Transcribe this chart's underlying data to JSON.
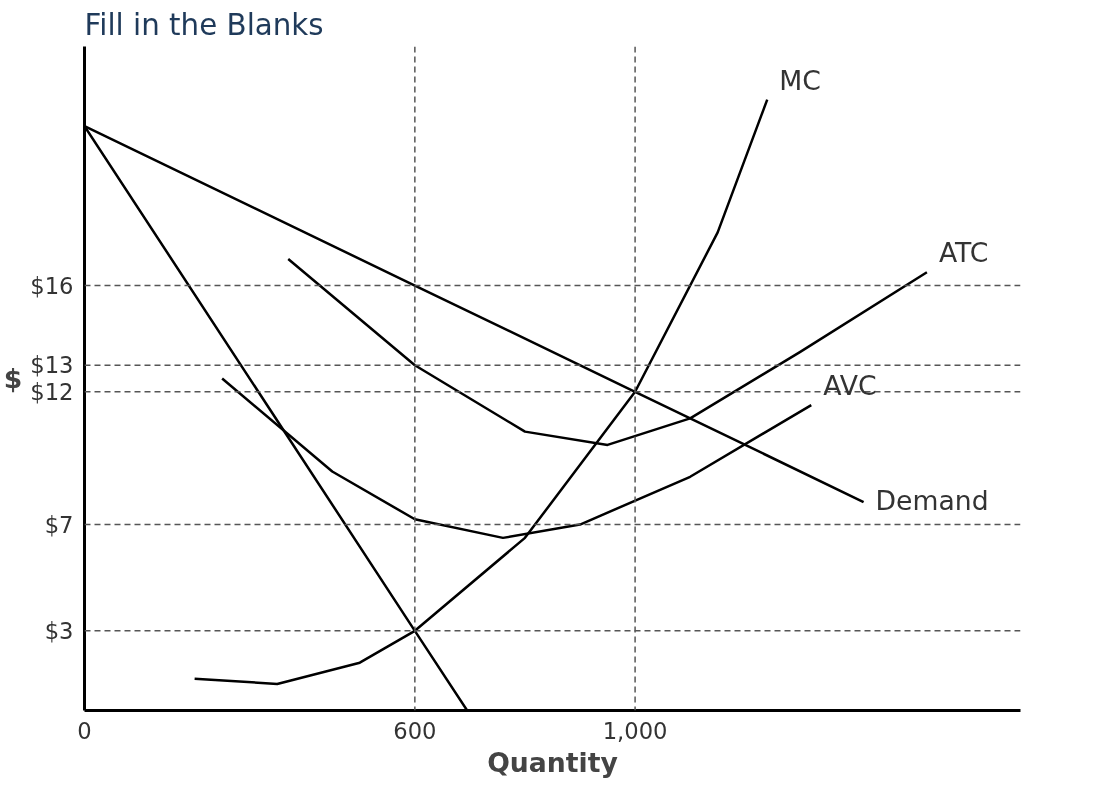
{
  "chart_data": {
    "type": "line",
    "title": "Fill in the Blanks",
    "xlabel": "Quantity",
    "ylabel": "$",
    "xlim": [
      0,
      1700
    ],
    "ylim": [
      0,
      25
    ],
    "xticks": [
      0,
      600,
      {
        "value": 1000,
        "label": "1,000"
      }
    ],
    "yticks": [
      {
        "value": 3,
        "label": "$3"
      },
      {
        "value": 7,
        "label": "$7"
      },
      {
        "value": 12,
        "label": "$12"
      },
      {
        "value": 13,
        "label": "$13"
      },
      {
        "value": 16,
        "label": "$16"
      }
    ],
    "grid": false,
    "marker": "none",
    "line_style": "solid",
    "ref_lines": [
      {
        "axis": "y",
        "value": 16,
        "line_style": "dashed",
        "color": "#555555"
      },
      {
        "axis": "y",
        "value": 13,
        "line_style": "dashed",
        "color": "#555555"
      },
      {
        "axis": "y",
        "value": 12,
        "line_style": "dashed",
        "color": "#555555"
      },
      {
        "axis": "y",
        "value": 7,
        "line_style": "dashed",
        "color": "#555555"
      },
      {
        "axis": "y",
        "value": 3,
        "line_style": "dashed",
        "color": "#555555"
      },
      {
        "axis": "x",
        "value": 600,
        "line_style": "dashed",
        "color": "#555555"
      },
      {
        "axis": "x",
        "value": 1000,
        "line_style": "dashed",
        "color": "#555555"
      }
    ],
    "series": [
      {
        "name": "MC",
        "color": "#000000",
        "x": [
          200,
          350,
          500,
          600,
          800,
          1000,
          1150,
          1240
        ],
        "values": [
          1.2,
          1,
          1.8,
          3,
          6.5,
          12,
          18,
          23
        ]
      },
      {
        "name": "ATC",
        "color": "#000000",
        "x": [
          370,
          600,
          800,
          950,
          1100,
          1300,
          1530
        ],
        "values": [
          17,
          13,
          10.5,
          10,
          11,
          13.5,
          16.5
        ]
      },
      {
        "name": "AVC",
        "color": "#000000",
        "x": [
          250,
          450,
          600,
          760,
          900,
          1100,
          1320
        ],
        "values": [
          12.5,
          9,
          7.2,
          6.5,
          7,
          8.8,
          11.5
        ]
      },
      {
        "name": "Demand",
        "color": "#000000",
        "x": [
          0,
          600,
          1000,
          1415
        ],
        "values": [
          22,
          16,
          12,
          7.85
        ]
      },
      {
        "color": "#000000",
        "x": [
          0,
          600,
          695
        ],
        "values": [
          22,
          3,
          0
        ]
      }
    ]
  }
}
